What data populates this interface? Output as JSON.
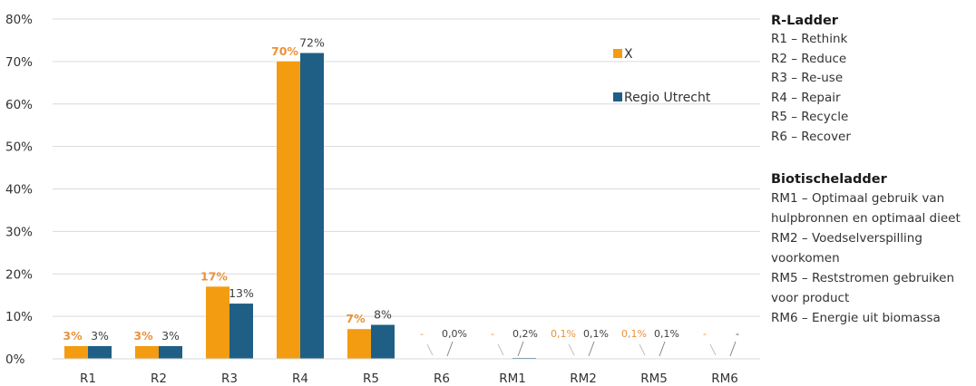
{
  "chart_data": {
    "type": "bar",
    "categories": [
      "R1",
      "R2",
      "R3",
      "R4",
      "R5",
      "R6",
      "RM1",
      "RM2",
      "RM5",
      "RM6"
    ],
    "series": [
      {
        "name": "X",
        "color": "#F39C12",
        "values": [
          3,
          3,
          17,
          70,
          7,
          0,
          0,
          0.1,
          0.1,
          0
        ],
        "labels": [
          "3%",
          "3%",
          "17%",
          "70%",
          "7%",
          "-",
          "-",
          "0,1%",
          "0,1%",
          "-"
        ]
      },
      {
        "name": "Regio Utrecht",
        "color": "#1F5F85",
        "values": [
          3,
          3,
          13,
          72,
          8,
          0,
          0.2,
          0.1,
          0.1,
          0
        ],
        "labels": [
          "3%",
          "3%",
          "13%",
          "72%",
          "8%",
          "0,0%",
          "0,2%",
          "0,1%",
          "0,1%",
          "-"
        ]
      }
    ],
    "yticks": [
      "0%",
      "10%",
      "20%",
      "30%",
      "40%",
      "50%",
      "60%",
      "70%",
      "80%"
    ],
    "ylim": [
      0,
      80
    ],
    "grid": true,
    "legend_position": "top-right",
    "label_color_x": "#E8923A",
    "label_color_regio": "#404040"
  },
  "side_legend": {
    "r_title": "R-Ladder",
    "r_items": [
      "R1 – Rethink",
      "R2 – Reduce",
      "R3 – Re-use",
      "R4 – Repair",
      "R5 – Recycle",
      "R6 – Recover"
    ],
    "bio_title": "Biotischeladder",
    "bio_items": [
      "RM1 – Optimaal gebruik van hulpbronnen en optimaal dieet",
      "RM2 – Voedselverspilling voorkomen",
      "RM5 – Reststromen gebruiken voor product",
      "RM6 – Energie uit biomassa"
    ]
  }
}
